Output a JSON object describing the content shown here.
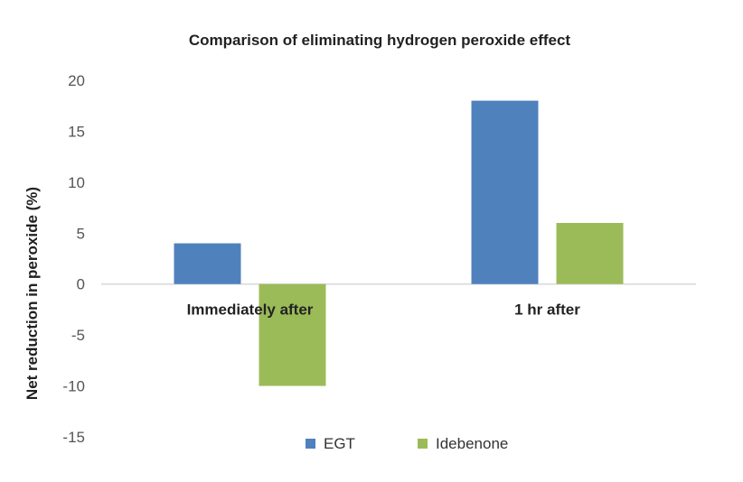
{
  "chart_data": {
    "type": "bar",
    "title": "Comparison of eliminating hydrogen peroxide effect",
    "xlabel": "",
    "ylabel": "Net reduction in peroxide (%)",
    "categories": [
      "Immediately after",
      "1 hr after"
    ],
    "series": [
      {
        "name": "EGT",
        "values": [
          4,
          18
        ],
        "color": "#4f81bd"
      },
      {
        "name": "Idebenone",
        "values": [
          -10,
          6
        ],
        "color": "#9bbb59"
      }
    ],
    "ylim": [
      -15,
      20
    ],
    "yticks": [
      "20",
      "15",
      "10",
      "5",
      "0",
      "-5",
      "-10",
      "-15"
    ],
    "ytick_values": [
      20,
      15,
      10,
      5,
      0,
      -5,
      -10,
      -15
    ],
    "grid": false,
    "legend_position": "bottom"
  }
}
